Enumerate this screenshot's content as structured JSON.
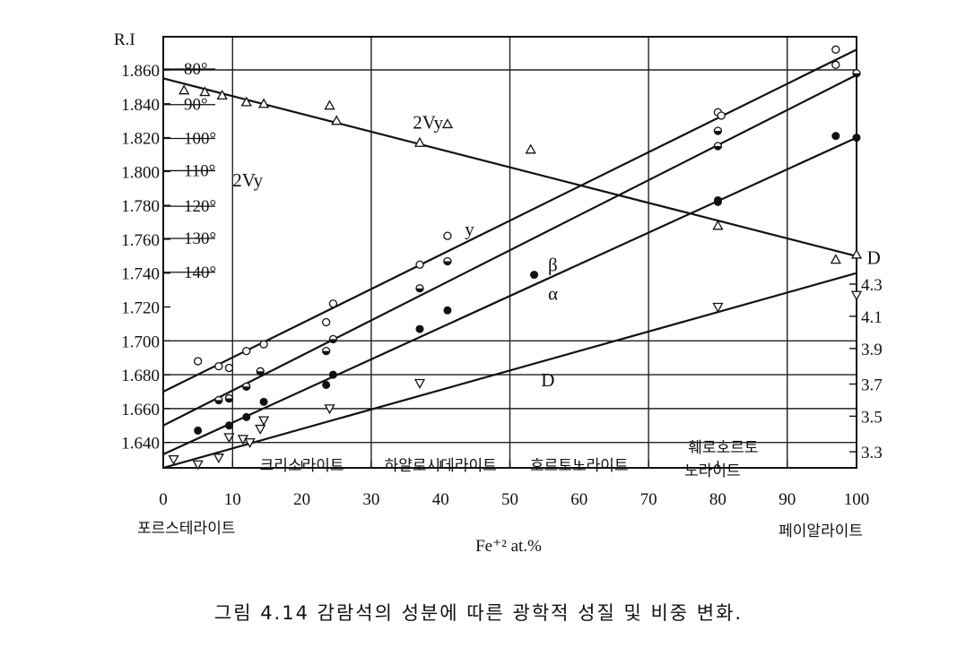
{
  "chart_data": {
    "type": "line",
    "xlabel": "Fe⁺² at.%",
    "ylabel": "R.I",
    "xlim": [
      0,
      100
    ],
    "ylim": [
      1.625,
      1.875
    ],
    "x_ticks": [
      0,
      10,
      20,
      30,
      40,
      50,
      60,
      70,
      80,
      90,
      100
    ],
    "y_ticks": [
      1.64,
      1.66,
      1.68,
      1.7,
      1.72,
      1.74,
      1.76,
      1.78,
      1.8,
      1.82,
      1.84,
      1.86
    ],
    "y_tick_labels": [
      "1.640",
      "1.660",
      "1.680",
      "1.700",
      "1.720",
      "1.740",
      "1.760",
      "1.780",
      "1.800",
      "1.820",
      "1.840",
      "1.860"
    ],
    "angle_axis": {
      "label": "2Vy",
      "ticks": [
        {
          "label": "80°",
          "ri": 1.8605
        },
        {
          "label": "90°",
          "ri": 1.8395
        },
        {
          "label": "100°",
          "ri": 1.8195
        },
        {
          "label": "110°",
          "ri": 1.8005
        },
        {
          "label": "120°",
          "ri": 1.7795
        },
        {
          "label": "130°",
          "ri": 1.7605
        },
        {
          "label": "140°",
          "ri": 1.7405
        }
      ]
    },
    "density_axis": {
      "label": "D",
      "ticks": [
        {
          "label": "4.3",
          "ri": 1.7335
        },
        {
          "label": "4.1",
          "ri": 1.7145
        },
        {
          "label": "3.9",
          "ri": 1.6955
        },
        {
          "label": "3.7",
          "ri": 1.6745
        },
        {
          "label": "3.5",
          "ri": 1.6555
        },
        {
          "label": "3.3",
          "ri": 1.6345
        }
      ]
    },
    "series": [
      {
        "name": "2Vy",
        "marker": "triangle-up",
        "line": [
          [
            0,
            1.855
          ],
          [
            100,
            1.75
          ]
        ],
        "points": [
          [
            3,
            1.848
          ],
          [
            6,
            1.847
          ],
          [
            8.5,
            1.845
          ],
          [
            12,
            1.841
          ],
          [
            14.5,
            1.84
          ],
          [
            24,
            1.839
          ],
          [
            25,
            1.83
          ],
          [
            37,
            1.817
          ],
          [
            41,
            1.828
          ],
          [
            53,
            1.813
          ],
          [
            80,
            1.768
          ],
          [
            97,
            1.748
          ],
          [
            100,
            1.751
          ]
        ]
      },
      {
        "name": "y",
        "marker": "circle-open",
        "line": [
          [
            0,
            1.67
          ],
          [
            100,
            1.872
          ]
        ],
        "points": [
          [
            5,
            1.688
          ],
          [
            8,
            1.685
          ],
          [
            9.5,
            1.684
          ],
          [
            12,
            1.694
          ],
          [
            14.5,
            1.698
          ],
          [
            23.5,
            1.711
          ],
          [
            24.5,
            1.722
          ],
          [
            37,
            1.745
          ],
          [
            41,
            1.762
          ],
          [
            80,
            1.835
          ],
          [
            80.5,
            1.833
          ],
          [
            97,
            1.872
          ],
          [
            97,
            1.863
          ]
        ]
      },
      {
        "name": "β",
        "marker": "circle-half",
        "line": [
          [
            0,
            1.65
          ],
          [
            100,
            1.857
          ]
        ],
        "points": [
          [
            8,
            1.665
          ],
          [
            9.5,
            1.666
          ],
          [
            12,
            1.673
          ],
          [
            14,
            1.682
          ],
          [
            23.5,
            1.694
          ],
          [
            24.5,
            1.701
          ],
          [
            37,
            1.731
          ],
          [
            41,
            1.747
          ],
          [
            80,
            1.824
          ],
          [
            80,
            1.815
          ],
          [
            100,
            1.858
          ]
        ]
      },
      {
        "name": "α",
        "marker": "circle-filled",
        "line": [
          [
            0,
            1.633
          ],
          [
            100,
            1.82
          ]
        ],
        "points": [
          [
            5,
            1.647
          ],
          [
            9.5,
            1.65
          ],
          [
            12,
            1.655
          ],
          [
            14.5,
            1.664
          ],
          [
            23.5,
            1.674
          ],
          [
            24.5,
            1.68
          ],
          [
            37,
            1.707
          ],
          [
            41,
            1.718
          ],
          [
            53.5,
            1.739
          ],
          [
            80,
            1.783
          ],
          [
            80,
            1.782
          ],
          [
            97,
            1.821
          ],
          [
            100,
            1.82
          ]
        ]
      },
      {
        "name": "D",
        "marker": "triangle-down",
        "line": [
          [
            0,
            1.625
          ],
          [
            100,
            1.74
          ]
        ],
        "points": [
          [
            1.5,
            1.63
          ],
          [
            5,
            1.627
          ],
          [
            8,
            1.631
          ],
          [
            9.5,
            1.643
          ],
          [
            11.5,
            1.642
          ],
          [
            12.5,
            1.64
          ],
          [
            14,
            1.648
          ],
          [
            14.5,
            1.653
          ],
          [
            24,
            1.66
          ],
          [
            37,
            1.675
          ],
          [
            80,
            1.72
          ],
          [
            100,
            1.727
          ]
        ]
      }
    ],
    "horizontal_gridlines": [
      1.64,
      1.66,
      1.68,
      1.7,
      1.86
    ],
    "zone_boundaries": [
      10,
      30,
      50,
      70,
      90
    ],
    "zones": [
      {
        "label": "크리소라이트",
        "x": 20
      },
      {
        "label": "하얄로시데라이트",
        "x": 40
      },
      {
        "label": "호르토노라이트",
        "x": 60
      },
      {
        "label": "훼로호르토",
        "label2": "노라이트",
        "x": 80
      }
    ],
    "end_labels": {
      "left": "포르스테라이트",
      "right": "페이알라이트"
    },
    "curve_labels": [
      {
        "text": "2Vy",
        "x": 36,
        "ri": 1.829
      },
      {
        "text": "2Vy",
        "x": 10,
        "ri": 1.795
      },
      {
        "text": "y",
        "x": 43.5,
        "ri": 1.766
      },
      {
        "text": "β",
        "x": 55.5,
        "ri": 1.745
      },
      {
        "text": "α",
        "x": 55.5,
        "ri": 1.728
      },
      {
        "text": "D",
        "x": 54.5,
        "ri": 1.677
      },
      {
        "text": "D",
        "x": 101.5,
        "ri": 1.749
      }
    ]
  },
  "caption": "그림 4.14  감람석의 성분에 따른 광학적 성질 및 비중 변화."
}
